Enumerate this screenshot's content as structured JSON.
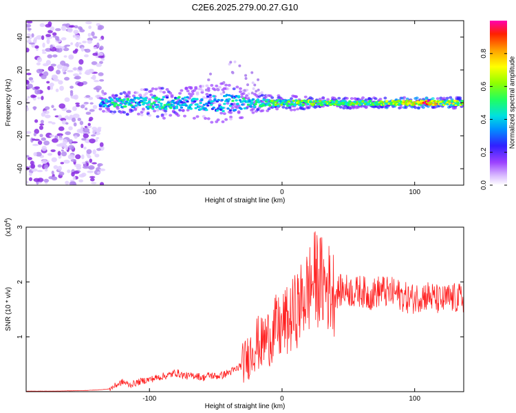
{
  "title": "C2E6.2025.279.00.27.G10",
  "chart_data": [
    {
      "type": "heatmap",
      "xlabel": "Height of straight line (km)",
      "ylabel": "Frequency (Hz)",
      "xlim": [
        -193,
        137
      ],
      "ylim": [
        -50,
        50
      ],
      "xticks": [
        -100,
        0,
        100
      ],
      "xtick_labels": [
        "-100",
        "0",
        "100"
      ],
      "yticks": [
        -40,
        -20,
        0,
        20,
        40
      ],
      "ytick_labels": [
        "-40",
        "-20",
        "0",
        "20",
        "40"
      ],
      "colorbar": {
        "label": "Normalized spectral amplitude",
        "range": [
          0,
          1
        ],
        "ticks": [
          0,
          0.2,
          0.4,
          0.6,
          0.8
        ],
        "tick_labels": [
          "0.0",
          "0.2",
          "0.4",
          "0.6",
          "0.8"
        ],
        "colormap": [
          "#ffffff",
          "#c9a0ff",
          "#8a2be2",
          "#2020ff",
          "#00b0ff",
          "#00e5c0",
          "#30ff30",
          "#c0ff00",
          "#ffff00",
          "#ffa000",
          "#ff2000",
          "#ff00a0"
        ]
      },
      "band_center_hz": 0,
      "band": [
        {
          "x": -137,
          "amp": 0.35,
          "width": 5
        },
        {
          "x": -125,
          "amp": 0.55,
          "width": 6
        },
        {
          "x": -110,
          "amp": 0.45,
          "width": 7
        },
        {
          "x": -95,
          "amp": 0.5,
          "width": 9
        },
        {
          "x": -80,
          "amp": 0.45,
          "width": 8
        },
        {
          "x": -65,
          "amp": 0.45,
          "width": 9
        },
        {
          "x": -50,
          "amp": 0.4,
          "width": 12
        },
        {
          "x": -35,
          "amp": 0.45,
          "width": 10
        },
        {
          "x": -20,
          "amp": 0.5,
          "width": 5
        },
        {
          "x": -5,
          "amp": 0.55,
          "width": 4
        },
        {
          "x": 10,
          "amp": 0.6,
          "width": 4
        },
        {
          "x": 25,
          "amp": 0.65,
          "width": 3
        },
        {
          "x": 40,
          "amp": 0.6,
          "width": 3
        },
        {
          "x": 55,
          "amp": 0.6,
          "width": 3
        },
        {
          "x": 70,
          "amp": 0.6,
          "width": 3
        },
        {
          "x": 85,
          "amp": 0.7,
          "width": 3
        },
        {
          "x": 100,
          "amp": 0.75,
          "width": 3
        },
        {
          "x": 110,
          "amp": 0.9,
          "width": 3
        },
        {
          "x": 120,
          "amp": 0.7,
          "width": 3
        },
        {
          "x": 137,
          "amp": 0.65,
          "width": 3
        }
      ],
      "noise_region_x": [
        -193,
        -135
      ]
    },
    {
      "type": "line",
      "xlabel": "Height of straight line (km)",
      "ylabel": "SNR (10 * v/v)",
      "y_multiplier": "(x10^4)",
      "xlim": [
        -193,
        137
      ],
      "ylim": [
        0,
        3
      ],
      "xticks": [
        -100,
        0,
        100
      ],
      "xtick_labels": [
        "-100",
        "0",
        "100"
      ],
      "yticks": [
        1,
        2,
        3
      ],
      "ytick_labels": [
        "1",
        "2",
        "3"
      ],
      "color": "#ff2020",
      "series": [
        {
          "x": [
            -193,
            -180,
            -170,
            -160,
            -150,
            -140,
            -130,
            -125,
            -120,
            -115,
            -110,
            -105,
            -100,
            -95,
            -90,
            -85,
            -80,
            -75,
            -70,
            -65,
            -60,
            -55,
            -50,
            -45,
            -40,
            -35,
            -30,
            -25,
            -22,
            -19,
            -16,
            -13,
            -10,
            -7,
            -4,
            -1,
            2,
            5,
            8,
            11,
            14,
            17,
            20,
            23,
            26,
            29,
            32,
            35,
            40,
            45,
            50,
            55,
            60,
            65,
            70,
            75,
            80,
            85,
            90,
            95,
            100,
            105,
            110,
            115,
            120,
            125,
            130,
            137
          ],
          "values": [
            0.01,
            0.01,
            0.01,
            0.015,
            0.02,
            0.03,
            0.05,
            0.12,
            0.18,
            0.12,
            0.16,
            0.2,
            0.22,
            0.25,
            0.28,
            0.3,
            0.35,
            0.3,
            0.28,
            0.3,
            0.25,
            0.3,
            0.28,
            0.3,
            0.35,
            0.4,
            0.5,
            0.65,
            0.8,
            0.9,
            0.85,
            0.95,
            1.0,
            1.05,
            1.2,
            1.1,
            1.3,
            1.25,
            1.4,
            1.5,
            1.6,
            1.75,
            1.85,
            2.0,
            2.1,
            2.0,
            1.95,
            1.9,
            1.8,
            1.85,
            1.85,
            1.8,
            1.85,
            1.75,
            1.8,
            1.85,
            1.8,
            1.8,
            1.75,
            1.7,
            1.7,
            1.75,
            1.75,
            1.7,
            1.65,
            1.7,
            1.7,
            1.7
          ]
        }
      ]
    }
  ]
}
